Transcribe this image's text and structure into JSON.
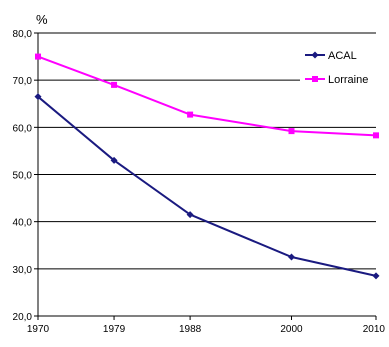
{
  "chart_data": {
    "type": "line",
    "title": "",
    "xlabel": "",
    "ylabel": "%",
    "x": [
      1970,
      1979,
      1988,
      2000,
      2010
    ],
    "x_tick_labels": [
      "1970",
      "1979",
      "1988",
      "2000",
      "2010"
    ],
    "ylim": [
      20,
      80
    ],
    "y_ticks": [
      20,
      30,
      40,
      50,
      60,
      70,
      80
    ],
    "y_tick_labels": [
      "20,0",
      "30,0",
      "40,0",
      "50,0",
      "60,0",
      "70,0",
      "80,0"
    ],
    "grid": "horizontal",
    "legend_position": "top-right",
    "series": [
      {
        "name": "ACAL",
        "color": "#1a1a80",
        "values": [
          66.5,
          53.0,
          41.5,
          32.5,
          28.5
        ]
      },
      {
        "name": "Lorraine",
        "color": "#ff00ff",
        "values": [
          75.0,
          69.0,
          62.7,
          59.2,
          58.3
        ]
      }
    ]
  }
}
